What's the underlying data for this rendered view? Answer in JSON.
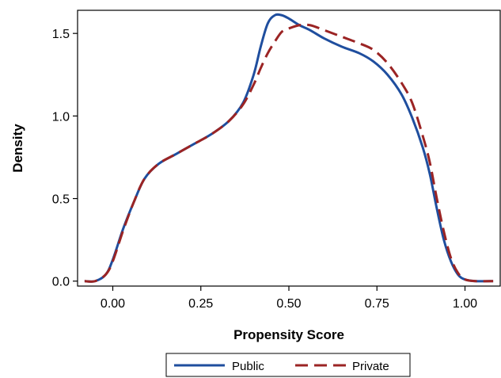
{
  "chart_data": {
    "type": "line",
    "xlabel": "Propensity Score",
    "ylabel": "Density",
    "xlim": [
      -0.1,
      1.1
    ],
    "ylim": [
      -0.03,
      1.64
    ],
    "xticks": [
      0.0,
      0.25,
      0.5,
      0.75,
      1.0
    ],
    "xtick_labels": [
      "0.00",
      "0.25",
      "0.50",
      "0.75",
      "1.00"
    ],
    "yticks": [
      0.0,
      0.5,
      1.0,
      1.5
    ],
    "ytick_labels": [
      "0.0",
      "0.5",
      "1.0",
      "1.5"
    ],
    "grid": false,
    "legend_position": "bottom",
    "series": [
      {
        "name": "Public",
        "color": "#1f4e9e",
        "style": "solid",
        "x": [
          -0.08,
          -0.05,
          -0.02,
          0.0,
          0.03,
          0.06,
          0.09,
          0.13,
          0.18,
          0.23,
          0.28,
          0.33,
          0.37,
          0.4,
          0.42,
          0.44,
          0.46,
          0.48,
          0.5,
          0.53,
          0.56,
          0.6,
          0.65,
          0.7,
          0.74,
          0.78,
          0.82,
          0.85,
          0.88,
          0.9,
          0.92,
          0.94,
          0.96,
          0.98,
          1.0,
          1.03,
          1.08
        ],
        "y": [
          0.0,
          0.0,
          0.04,
          0.13,
          0.32,
          0.48,
          0.62,
          0.71,
          0.77,
          0.83,
          0.89,
          0.97,
          1.08,
          1.25,
          1.42,
          1.56,
          1.61,
          1.61,
          1.59,
          1.55,
          1.52,
          1.47,
          1.42,
          1.38,
          1.33,
          1.25,
          1.13,
          0.99,
          0.81,
          0.65,
          0.44,
          0.25,
          0.12,
          0.04,
          0.01,
          0.0,
          0.0
        ]
      },
      {
        "name": "Private",
        "color": "#9b2424",
        "style": "dashed",
        "x": [
          -0.08,
          -0.05,
          -0.02,
          0.0,
          0.03,
          0.06,
          0.09,
          0.13,
          0.18,
          0.23,
          0.28,
          0.33,
          0.37,
          0.4,
          0.42,
          0.44,
          0.46,
          0.48,
          0.5,
          0.53,
          0.56,
          0.6,
          0.65,
          0.7,
          0.74,
          0.78,
          0.82,
          0.85,
          0.88,
          0.9,
          0.92,
          0.94,
          0.96,
          0.98,
          1.0,
          1.03,
          1.08
        ],
        "y": [
          0.0,
          0.0,
          0.04,
          0.12,
          0.31,
          0.48,
          0.62,
          0.71,
          0.77,
          0.83,
          0.89,
          0.97,
          1.07,
          1.19,
          1.29,
          1.38,
          1.45,
          1.51,
          1.53,
          1.55,
          1.55,
          1.52,
          1.48,
          1.44,
          1.4,
          1.32,
          1.2,
          1.08,
          0.88,
          0.72,
          0.5,
          0.3,
          0.14,
          0.05,
          0.01,
          0.0,
          0.0
        ]
      }
    ]
  }
}
